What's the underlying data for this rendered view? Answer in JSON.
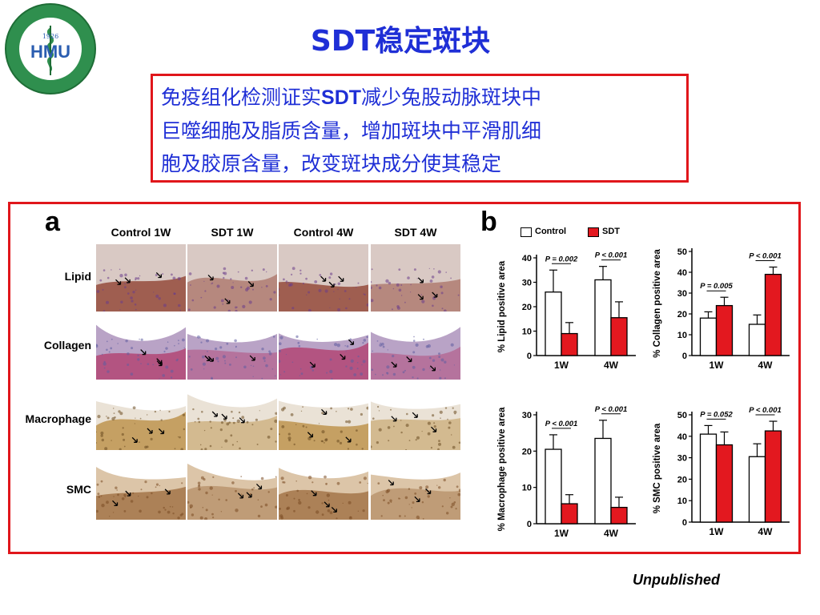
{
  "slide": {
    "title": "SDT稳定斑块",
    "logo": {
      "year": "1926",
      "initials": "HMU",
      "ring_text": "HARBIN MEDICAL UNIVERSITY",
      "top_text": "哈尔滨医科大学"
    },
    "summary_lines": [
      {
        "pre": "免疫组化检测证实",
        "bold": "SDT",
        "post": "减少兔股动脉斑块中"
      },
      {
        "pre": "巨噬细胞及脂质含量，增加斑块中平滑肌细",
        "bold": "",
        "post": ""
      },
      {
        "pre": "胞及胶原含量，改变斑块成分使其稳定",
        "bold": "",
        "post": ""
      }
    ],
    "footnote": "Unpublished"
  },
  "figure": {
    "panel_a": {
      "letter": "a",
      "columns": [
        "Control 1W",
        "SDT 1W",
        "Control 4W",
        "SDT 4W"
      ],
      "rows": [
        "Lipid",
        "Collagen",
        "Macrophage",
        "SMC"
      ]
    },
    "panel_b": {
      "letter": "b",
      "legend": [
        {
          "label": "Control",
          "color": "#ffffff"
        },
        {
          "label": "SDT",
          "color": "#e3181f"
        }
      ]
    }
  },
  "chart_data": [
    {
      "type": "bar",
      "ylabel": "% Lipid positive area",
      "categories": [
        "1W",
        "4W"
      ],
      "ylim": [
        0,
        40
      ],
      "yticks": [
        0,
        10,
        20,
        30,
        40
      ],
      "series": [
        {
          "name": "Control",
          "values": [
            26,
            31
          ],
          "errors": [
            9,
            5.5
          ]
        },
        {
          "name": "SDT",
          "values": [
            9,
            15.5
          ],
          "errors": [
            4.5,
            6.5
          ]
        }
      ],
      "annotations": [
        "P = 0.002",
        "P < 0.001"
      ]
    },
    {
      "type": "bar",
      "ylabel": "% Collagen positive area",
      "categories": [
        "1W",
        "4W"
      ],
      "ylim": [
        0,
        50
      ],
      "yticks": [
        0,
        10,
        20,
        30,
        40,
        50
      ],
      "series": [
        {
          "name": "Control",
          "values": [
            18,
            15
          ],
          "errors": [
            3,
            4.5
          ]
        },
        {
          "name": "SDT",
          "values": [
            24,
            39
          ],
          "errors": [
            4,
            3.5
          ]
        }
      ],
      "annotations": [
        "P = 0.005",
        "P < 0.001"
      ]
    },
    {
      "type": "bar",
      "ylabel": "% Macrophage positive area",
      "categories": [
        "1W",
        "4W"
      ],
      "ylim": [
        0,
        30
      ],
      "yticks": [
        0,
        10,
        20,
        30
      ],
      "series": [
        {
          "name": "Control",
          "values": [
            20.5,
            23.5
          ],
          "errors": [
            4,
            5
          ]
        },
        {
          "name": "SDT",
          "values": [
            5.5,
            4.5
          ],
          "errors": [
            2.5,
            2.8
          ]
        }
      ],
      "annotations": [
        "P < 0.001",
        "P < 0.001"
      ]
    },
    {
      "type": "bar",
      "ylabel": "% SMC positive area",
      "categories": [
        "1W",
        "4W"
      ],
      "ylim": [
        0,
        50
      ],
      "yticks": [
        0,
        10,
        20,
        30,
        40,
        50
      ],
      "series": [
        {
          "name": "Control",
          "values": [
            41,
            30.5
          ],
          "errors": [
            4,
            6
          ]
        },
        {
          "name": "SDT",
          "values": [
            36,
            42.5
          ],
          "errors": [
            6,
            4.5
          ]
        }
      ],
      "annotations": [
        "P = 0.052",
        "P < 0.001"
      ]
    }
  ]
}
